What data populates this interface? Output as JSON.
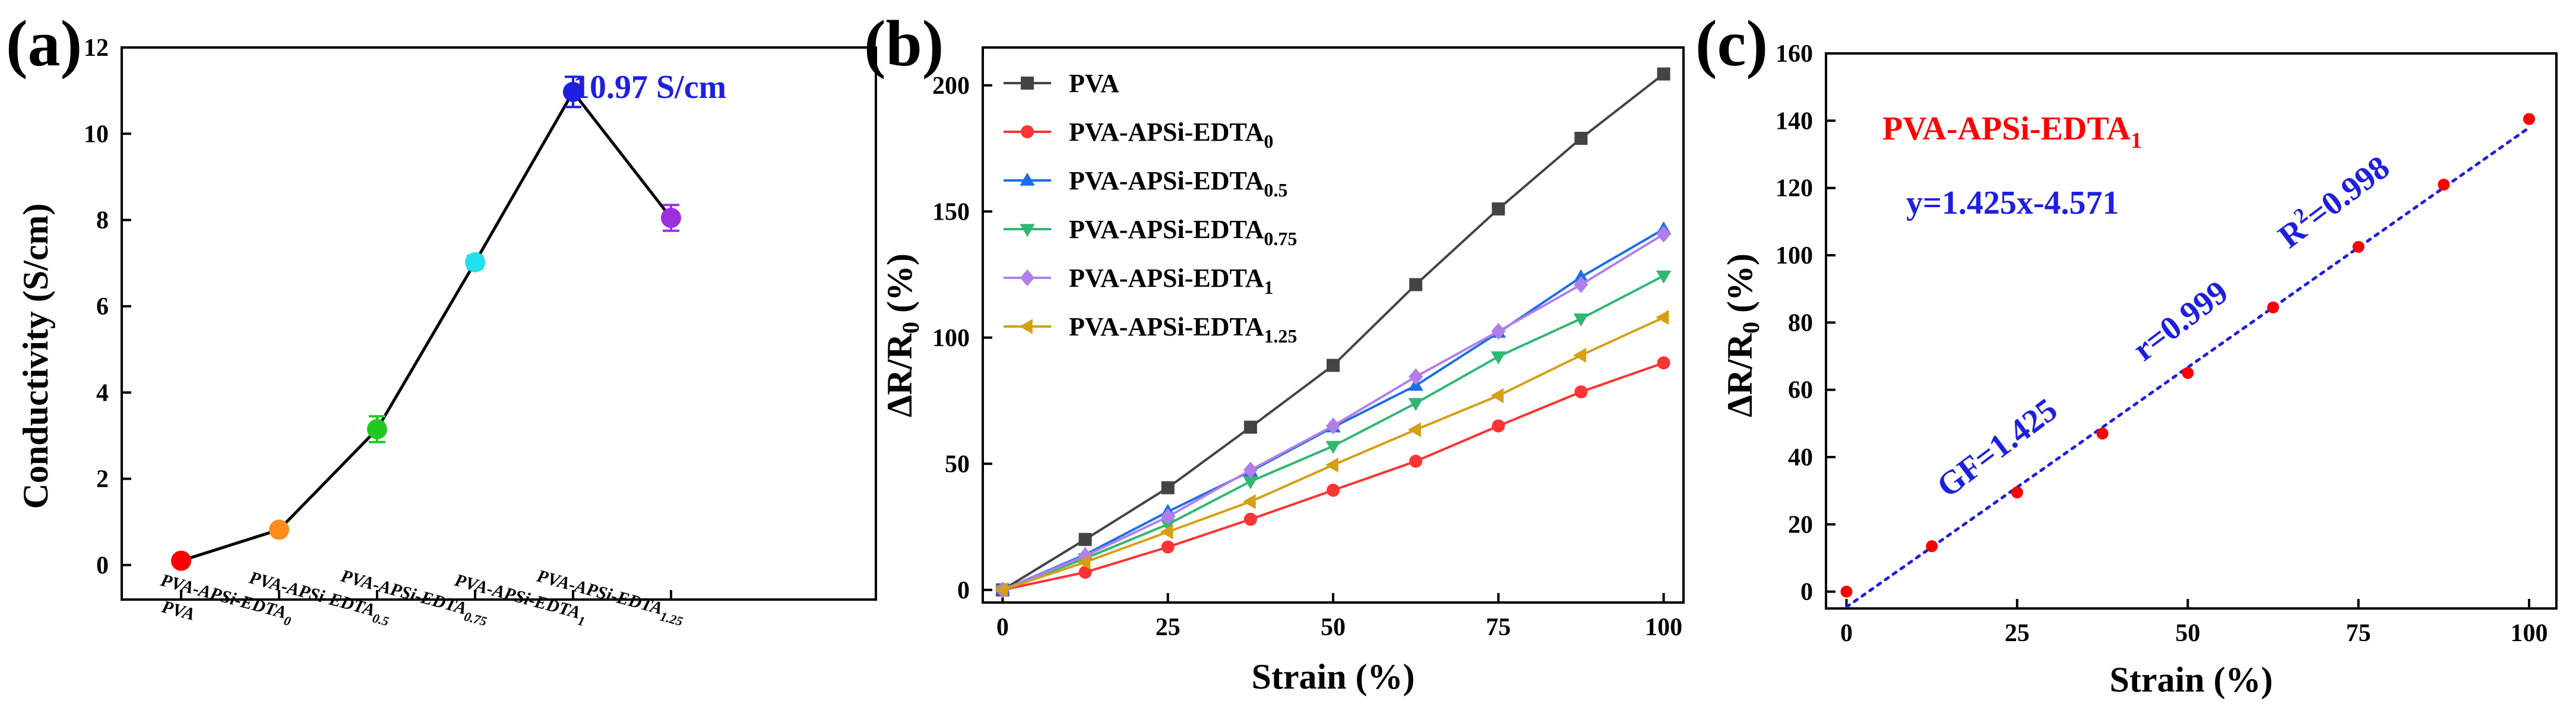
{
  "panels": [
    {
      "label": "(a)",
      "xlabel": "",
      "ylabel": "Conductivity (S/cm)",
      "annotation": "10.97 S/cm"
    },
    {
      "label": "(b)",
      "xlabel": "Strain (%)",
      "ylabel": "ΔR/R0 (%)"
    },
    {
      "label": "(c)",
      "xlabel": "Strain (%)",
      "ylabel": "ΔR/R0 (%)",
      "sample_label": "PVA-APSi-EDTA1",
      "fit_equation": "y=1.425x-4.571",
      "gf_text": "GF=1.425",
      "r_text": "r=0.999",
      "r2_text": "R2=0.998"
    }
  ],
  "chart_data": [
    {
      "type": "line",
      "categories": [
        "PVA",
        "PVA-APSi-EDTA0",
        "PVA-APSi-EDTA0.5",
        "PVA-APSi-EDTA0.75",
        "PVA-APSi-EDTA1",
        "PVA-APSi-EDTA1.25"
      ],
      "values": [
        0.1,
        0.82,
        3.15,
        7.02,
        10.97,
        8.05
      ],
      "errors": [
        0.05,
        0.08,
        0.3,
        0.15,
        0.35,
        0.3
      ],
      "point_colors": [
        "#ff0000",
        "#ff8c1a",
        "#22c822",
        "#22e0ee",
        "#1f1fe0",
        "#9b30e0"
      ],
      "line_color": "#000000",
      "xlabel": "",
      "ylabel": "Conductivity (S/cm)",
      "ylim": [
        -0.8,
        12
      ],
      "yticks": [
        0,
        2,
        4,
        6,
        8,
        10,
        12
      ],
      "annotation": "10.97 S/cm",
      "annotation_color": "#1f1fe0"
    },
    {
      "type": "line",
      "x": [
        0,
        12.5,
        25,
        37.5,
        50,
        62.5,
        75,
        87.5,
        100
      ],
      "series": [
        {
          "name": "PVA",
          "color": "#444444",
          "marker": "square",
          "values": [
            0,
            20,
            40.5,
            64.5,
            89,
            121,
            151,
            179,
            204.5
          ]
        },
        {
          "name": "PVA-APSi-EDTA0",
          "color": "#ff3333",
          "marker": "circle",
          "values": [
            0,
            7,
            17,
            28,
            39.5,
            51,
            65,
            78.5,
            90
          ]
        },
        {
          "name": "PVA-APSi-EDTA0.5",
          "color": "#1a6ee8",
          "marker": "triangle-up",
          "values": [
            0,
            14,
            31,
            47,
            64.5,
            81,
            102,
            124,
            143
          ]
        },
        {
          "name": "PVA-APSi-EDTA0.75",
          "color": "#2eb872",
          "marker": "triangle-down",
          "values": [
            0,
            12.5,
            26,
            43,
            57,
            74,
            92.5,
            107.5,
            124.5
          ]
        },
        {
          "name": "PVA-APSi-EDTA1",
          "color": "#b27fea",
          "marker": "diamond",
          "values": [
            0,
            13.5,
            29,
            47.5,
            65,
            84.5,
            102.5,
            121,
            141
          ]
        },
        {
          "name": "PVA-APSi-EDTA1.25",
          "color": "#d4a017",
          "marker": "triangle-left",
          "values": [
            0,
            11,
            23,
            35,
            49.5,
            63.5,
            77,
            93,
            108
          ]
        }
      ],
      "legend_entries": [
        {
          "base": "PVA",
          "sub": ""
        },
        {
          "base": "PVA-APSi-EDTA",
          "sub": "0"
        },
        {
          "base": "PVA-APSi-EDTA",
          "sub": "0.5"
        },
        {
          "base": "PVA-APSi-EDTA",
          "sub": "0.75"
        },
        {
          "base": "PVA-APSi-EDTA",
          "sub": "1"
        },
        {
          "base": "PVA-APSi-EDTA",
          "sub": "1.25"
        }
      ],
      "xlabel": "Strain (%)",
      "ylabel": "ΔR/R0 (%)",
      "xlim": [
        -3,
        103
      ],
      "ylim": [
        -5,
        215
      ],
      "xticks": [
        0,
        25,
        50,
        75,
        100
      ],
      "yticks": [
        0,
        50,
        100,
        150,
        200
      ],
      "legend": "top-left"
    },
    {
      "type": "scatter",
      "x": [
        0,
        12.5,
        25,
        37.5,
        50,
        62.5,
        75,
        87.5,
        100
      ],
      "values": [
        0,
        13.5,
        29.5,
        47,
        65,
        84.5,
        102.5,
        121,
        140.5
      ],
      "point_color": "#ff0000",
      "fit": {
        "slope": 1.425,
        "intercept": -4.571,
        "color": "#1f1fe0",
        "style": "dotted"
      },
      "xlabel": "Strain (%)",
      "ylabel": "ΔR/R0 (%)",
      "xlim": [
        -3,
        104
      ],
      "ylim": [
        -5,
        160
      ],
      "xticks": [
        0,
        25,
        50,
        75,
        100
      ],
      "yticks": [
        0,
        20,
        40,
        60,
        80,
        100,
        120,
        140,
        160
      ]
    }
  ]
}
